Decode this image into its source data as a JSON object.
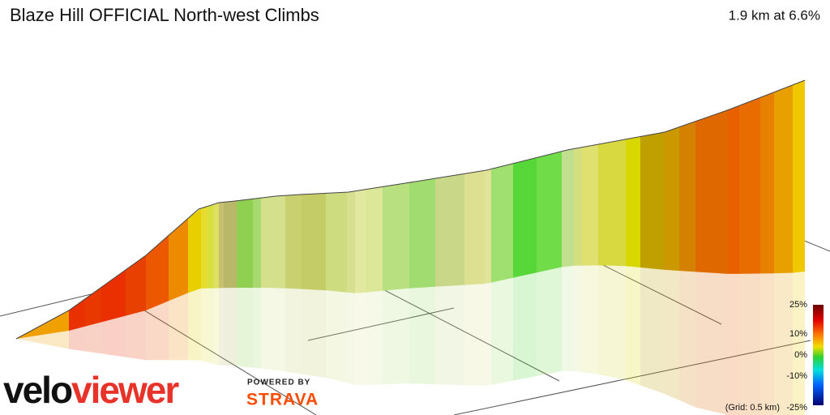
{
  "header": {
    "title": "Blaze Hill OFFICIAL North-west Climbs",
    "summary": "1.9 km at 6.6%"
  },
  "scale": {
    "labels": [
      "25%",
      "10%",
      "0%",
      "-10%",
      "-25%"
    ],
    "grid_note": "(Grid: 0.5 km)"
  },
  "branding": {
    "velo": "velo",
    "viewer": "viewer",
    "powered_by": "POWERED BY",
    "strava": "STRAVA"
  }
}
